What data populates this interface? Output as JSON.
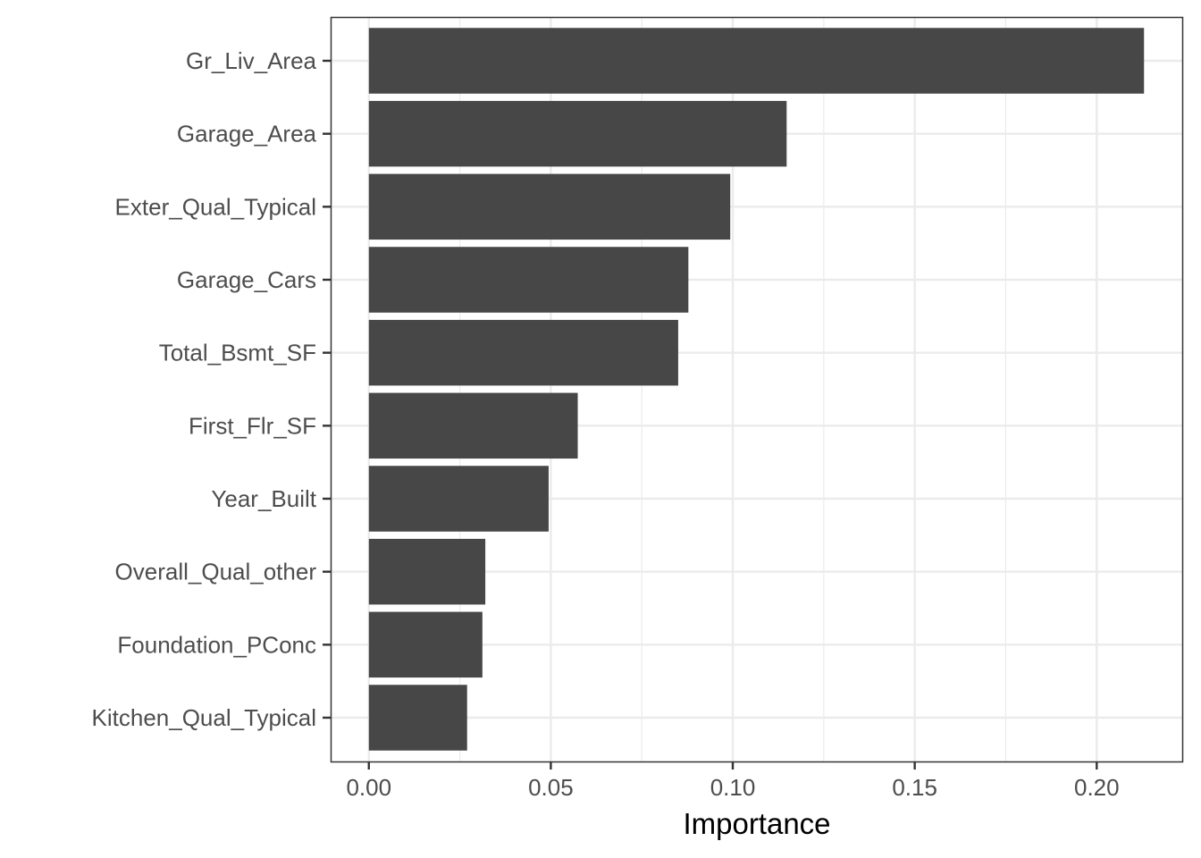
{
  "chart_data": {
    "type": "bar",
    "orientation": "horizontal",
    "title": "",
    "xlabel": "Importance",
    "ylabel": "",
    "xlim": [
      -0.0105,
      0.2235
    ],
    "x_ticks": [
      0.0,
      0.05,
      0.1,
      0.15,
      0.2
    ],
    "x_tick_labels": [
      "0.00",
      "0.05",
      "0.10",
      "0.15",
      "0.20"
    ],
    "grid": true,
    "legend": "none",
    "bar_color": "#474747",
    "categories": [
      "Gr_Liv_Area",
      "Garage_Area",
      "Exter_Qual_Typical",
      "Garage_Cars",
      "Total_Bsmt_SF",
      "First_Flr_SF",
      "Year_Built",
      "Overall_Qual_other",
      "Foundation_PConc",
      "Kitchen_Qual_Typical"
    ],
    "values": [
      0.213,
      0.1148,
      0.0993,
      0.0878,
      0.085,
      0.0574,
      0.0494,
      0.032,
      0.0312,
      0.027
    ]
  }
}
